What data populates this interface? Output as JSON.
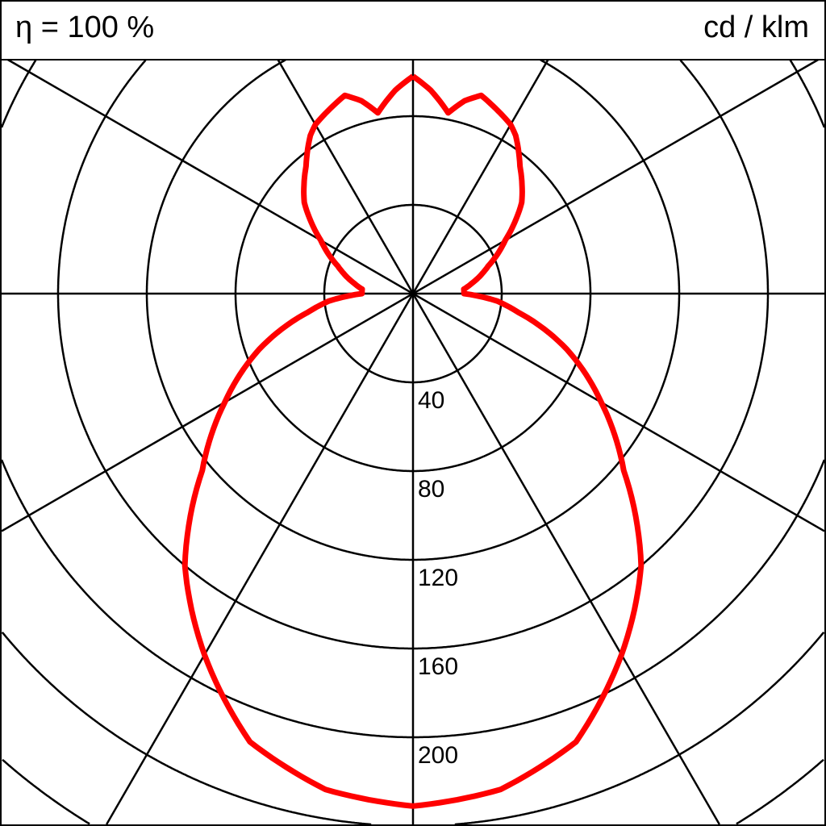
{
  "chart_data": {
    "type": "polar",
    "header_left": "η = 100 %",
    "header_right": "cd / klm",
    "radial_ticks": [
      40,
      80,
      120,
      160,
      200
    ],
    "radial_max_shown": 240,
    "angular_grid_step_deg": 30,
    "curve_color": "#ff0000",
    "grid_color": "#000000",
    "symmetric": true,
    "series": [
      {
        "gamma_deg": [
          0,
          10,
          20,
          30,
          40,
          50,
          60,
          70,
          80,
          85,
          90,
          95,
          100,
          110,
          120,
          130,
          140,
          147,
          150,
          157,
          161,
          165,
          169,
          175,
          180
        ],
        "cd_per_klm": [
          231,
          227,
          215,
          188,
          160,
          124,
          98,
          74,
          48,
          38,
          23,
          23,
          27,
          36,
          48,
          64,
          75,
          85,
          88,
          92,
          94.5,
          90,
          83,
          92,
          98
        ]
      }
    ]
  }
}
